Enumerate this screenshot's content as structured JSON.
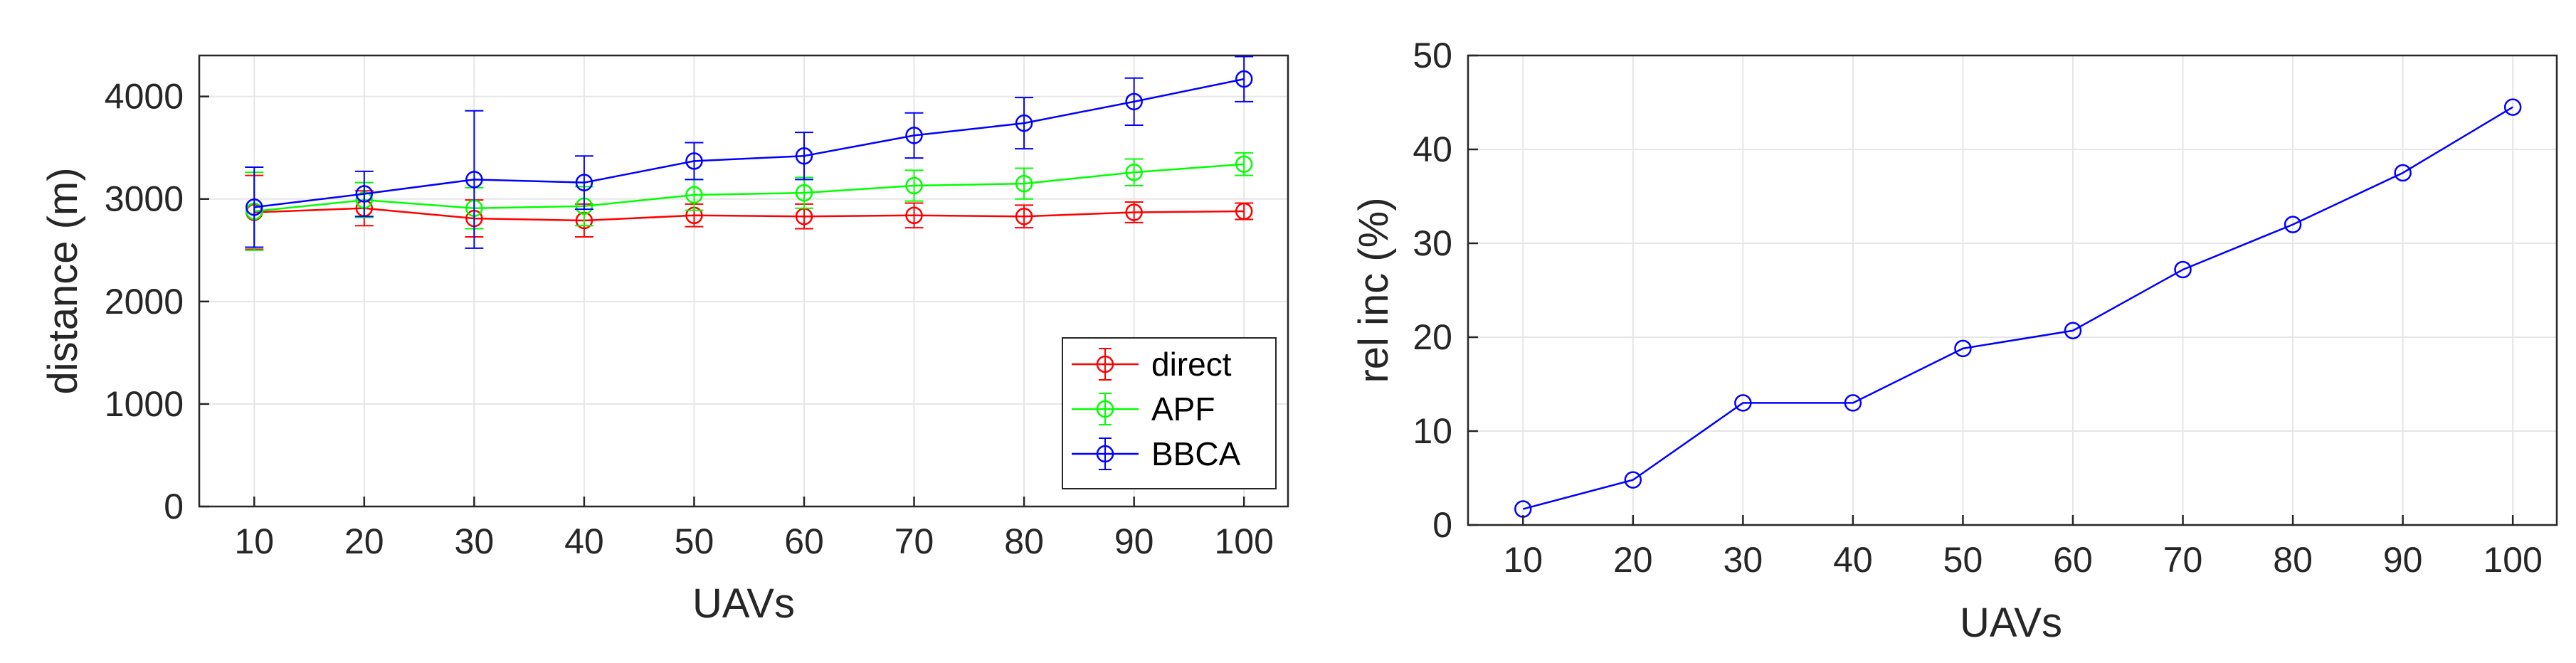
{
  "chart_data": [
    {
      "type": "line",
      "errorbars": true,
      "x": [
        10,
        20,
        30,
        40,
        50,
        60,
        70,
        80,
        90,
        100
      ],
      "xticks": [
        "10",
        "20",
        "30",
        "40",
        "50",
        "60",
        "70",
        "80",
        "90",
        "100"
      ],
      "yticks": [
        "0",
        "1000",
        "2000",
        "3000",
        "4000"
      ],
      "xlabel": "UAVs",
      "ylabel": "distance (m)",
      "xlim": [
        5,
        104
      ],
      "ylim": [
        0,
        4400
      ],
      "grid": true,
      "legend_position": "bottom-right",
      "series": [
        {
          "name": "direct",
          "color": "#ff0000",
          "values": [
            2870,
            2910,
            2810,
            2790,
            2840,
            2830,
            2840,
            2830,
            2870,
            2880
          ],
          "errors": [
            360,
            170,
            180,
            160,
            110,
            120,
            120,
            110,
            100,
            80
          ]
        },
        {
          "name": "APF",
          "color": "#00ff00",
          "values": [
            2880,
            2990,
            2910,
            2930,
            3040,
            3060,
            3130,
            3150,
            3260,
            3340
          ],
          "errors": [
            380,
            170,
            200,
            190,
            150,
            150,
            150,
            150,
            130,
            110
          ]
        },
        {
          "name": "BBCA",
          "color": "#0000ff",
          "values": [
            2920,
            3050,
            3190,
            3160,
            3370,
            3420,
            3620,
            3740,
            3950,
            4170
          ],
          "errors": [
            390,
            220,
            670,
            260,
            180,
            230,
            220,
            250,
            230,
            220
          ]
        }
      ]
    },
    {
      "type": "line",
      "x": [
        10,
        20,
        30,
        40,
        50,
        60,
        70,
        80,
        90,
        100
      ],
      "xticks": [
        "10",
        "20",
        "30",
        "40",
        "50",
        "60",
        "70",
        "80",
        "90",
        "100"
      ],
      "yticks": [
        "0",
        "10",
        "20",
        "30",
        "40",
        "50"
      ],
      "xlabel": "UAVs",
      "ylabel": "rel inc (%)",
      "xlim": [
        5,
        104
      ],
      "ylim": [
        0,
        50
      ],
      "grid": true,
      "series": [
        {
          "name": "rel inc",
          "color": "#0000ff",
          "values": [
            1.7,
            4.8,
            13.0,
            13.0,
            18.8,
            20.7,
            27.2,
            32.0,
            37.5,
            44.5
          ]
        }
      ]
    }
  ]
}
